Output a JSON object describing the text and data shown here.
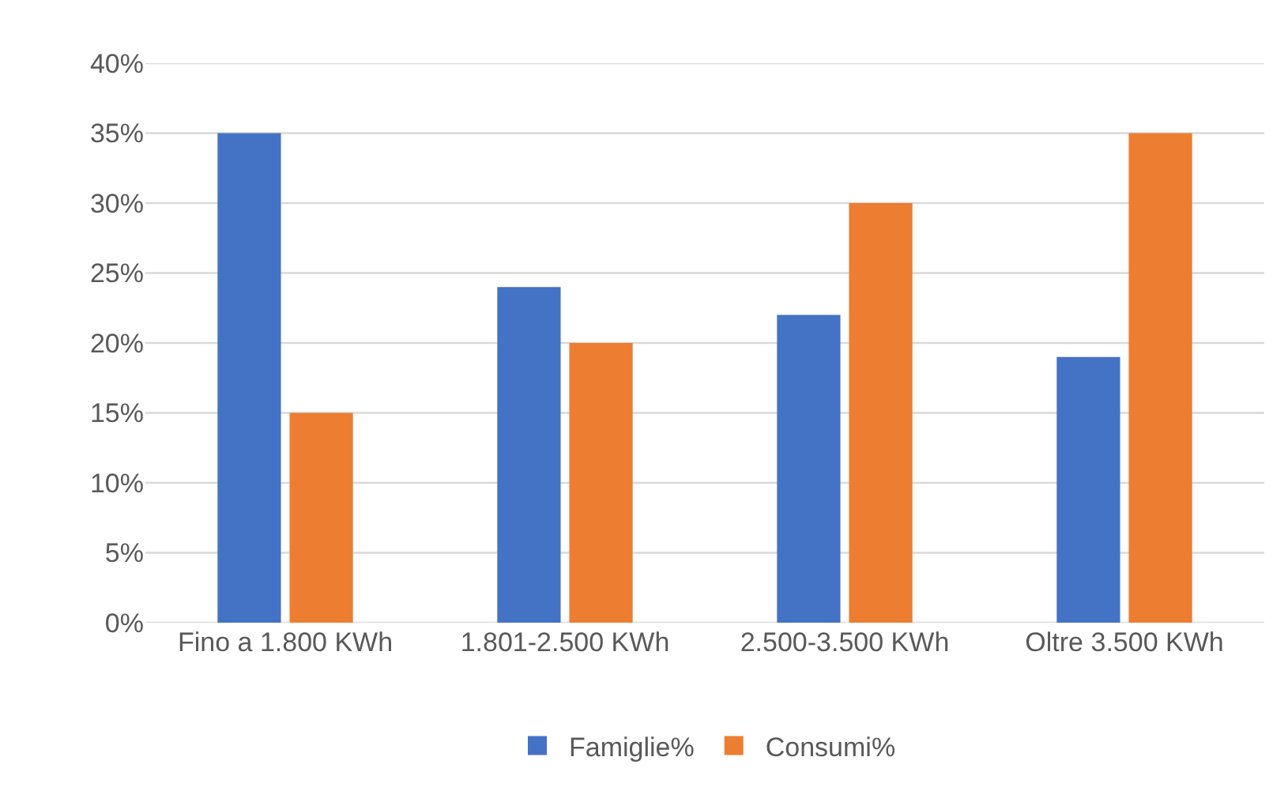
{
  "chart_data": {
    "type": "bar",
    "categories": [
      "Fino a 1.800 KWh",
      "1.801-2.500 KWh",
      "2.500-3.500 KWh",
      "Oltre 3.500 KWh"
    ],
    "series": [
      {
        "name": "Famiglie%",
        "color": "#4472c4",
        "values": [
          35,
          24,
          22,
          19
        ]
      },
      {
        "name": "Consumi%",
        "color": "#ed7d31",
        "values": [
          15,
          20,
          30,
          35
        ]
      }
    ],
    "ylim": [
      0,
      40
    ],
    "yticks": [
      {
        "value": 0,
        "label": "0%"
      },
      {
        "value": 5,
        "label": "5%"
      },
      {
        "value": 10,
        "label": "10%"
      },
      {
        "value": 15,
        "label": "15%"
      },
      {
        "value": 20,
        "label": "20%"
      },
      {
        "value": 25,
        "label": "25%"
      },
      {
        "value": 30,
        "label": "30%"
      },
      {
        "value": 35,
        "label": "35%"
      },
      {
        "value": 40,
        "label": "40%"
      }
    ],
    "grid": "y",
    "legend": "bottom"
  }
}
